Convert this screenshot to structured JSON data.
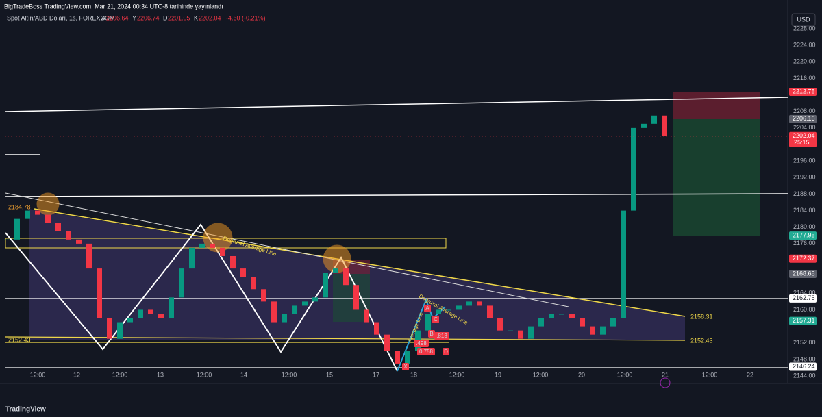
{
  "header": {
    "published": "BigTradeBoss TradingView.com, Mar 21, 2024 00:34 UTC-8 tarihinde yayınlandı",
    "symbol": "Spot Altın/ABD Doları, 1s, FOREXCOM",
    "ohlc": [
      {
        "key": "A",
        "value": "2206.64"
      },
      {
        "key": "Y",
        "value": "2206.74"
      },
      {
        "key": "D",
        "value": "2201.05"
      },
      {
        "key": "K",
        "value": "2202.04"
      }
    ],
    "change": "-4.60 (-0.21%)"
  },
  "currency": "USD",
  "price_axis": {
    "ticks": [
      {
        "value": 2228,
        "label": "2228.00"
      },
      {
        "value": 2224,
        "label": "2224.00"
      },
      {
        "value": 2220,
        "label": "2220.00"
      },
      {
        "value": 2216,
        "label": "2216.00"
      },
      {
        "value": 2208,
        "label": "2208.00"
      },
      {
        "value": 2204,
        "label": "2204.00"
      },
      {
        "value": 2196,
        "label": "2196.00"
      },
      {
        "value": 2192,
        "label": "2192.00"
      },
      {
        "value": 2188,
        "label": "2188.00"
      },
      {
        "value": 2184,
        "label": "2184.00"
      },
      {
        "value": 2180,
        "label": "2180.00"
      },
      {
        "value": 2176,
        "label": "2176.00"
      },
      {
        "value": 2164,
        "label": "2164.00"
      },
      {
        "value": 2160,
        "label": "2160.00"
      },
      {
        "value": 2152,
        "label": "2152.00"
      },
      {
        "value": 2148,
        "label": "2148.00"
      },
      {
        "value": 2144,
        "label": "2144.00"
      }
    ]
  },
  "price_tags": [
    {
      "value": 2212.75,
      "color": "#f23645"
    },
    {
      "value": 2206.16,
      "color": "#5d606b"
    },
    {
      "value": 2202.04,
      "color": "#f23645",
      "countdown": "25:15"
    },
    {
      "value": 2177.95,
      "color": "#22ab94"
    },
    {
      "value": 2172.37,
      "color": "#f23645"
    },
    {
      "value": 2168.68,
      "color": "#5d606b"
    },
    {
      "value": 2162.75,
      "color": "#ffffff"
    },
    {
      "value": 2157.31,
      "color": "#22ab94"
    },
    {
      "value": 2146.24,
      "color": "#ffffff"
    }
  ],
  "time_axis": {
    "labels": [
      "12:00",
      "12",
      "12:00",
      "13",
      "12:00",
      "14",
      "12:00",
      "15",
      "17",
      "18",
      "12:00",
      "19",
      "12:00",
      "20",
      "12:00",
      "21",
      "12:00",
      "22"
    ]
  },
  "annotations": {
    "level_high": "2184.78",
    "level_low_left": "2152.43",
    "level_right_top": "2158.31",
    "level_right_bottom": "2152.43",
    "trend_label_1": "Doğrusal Average Line",
    "trend_label_2": "Doğrusal Average Line",
    "trend_label_3": "Average Line",
    "pt_a": "A",
    "pt_b": "B",
    "pt_c": "C",
    "pt_d": "D",
    "pt_x": "X",
    "ratio_1": ".813",
    "ratio_2": "0.758",
    "ratio_3": ".498"
  },
  "candles": {
    "closes": [
      2177,
      2182,
      2184,
      2183,
      2181,
      2179,
      2177,
      2176,
      2170,
      2158,
      2153,
      2157,
      2158,
      2160,
      2159,
      2158,
      2163,
      2170,
      2175,
      2176,
      2175,
      2173,
      2170,
      2168,
      2165,
      2162,
      2157,
      2159,
      2161,
      2162,
      2163,
      2169,
      2170,
      2166,
      2160,
      2157,
      2154,
      2150,
      2147,
      2150,
      2155,
      2159,
      2160,
      2160,
      2161,
      2162,
      2161,
      2158,
      2155,
      2155,
      2153,
      2156,
      2158,
      2159,
      2159,
      2158,
      2156,
      2154,
      2156,
      2158,
      2184,
      2204,
      2205,
      2207,
      2202
    ]
  },
  "footer": {
    "brand": "TradingView"
  }
}
